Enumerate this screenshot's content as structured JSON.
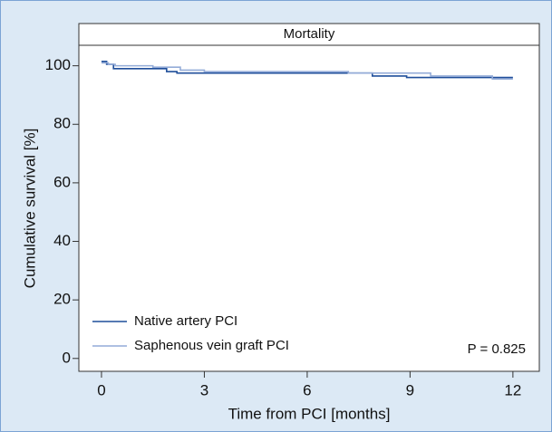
{
  "chart_data": {
    "type": "line",
    "title": "Mortality",
    "x_label": "Time from PCI [months]",
    "y_label": "Cumulative survival [%]",
    "annotation": "P = 0.825",
    "xlim": [
      -0.66,
      12.77
    ],
    "xticks": [
      0,
      3,
      6,
      9,
      12
    ],
    "ylim": [
      -4.4,
      107
    ],
    "yticks": [
      0,
      20,
      40,
      60,
      80,
      100
    ],
    "legend": "lower left",
    "series": [
      {
        "name": "Native artery PCI",
        "color": "#1f4e9a",
        "x": [
          0,
          0.15,
          0.15,
          0.35,
          0.35,
          1.9,
          1.9,
          2.2,
          2.2,
          7.9,
          7.9,
          8.9,
          8.9,
          12
        ],
        "values": [
          101.5,
          101.5,
          100.5,
          100.5,
          99,
          99,
          98,
          98,
          97.5,
          97.5,
          96.5,
          96.5,
          96,
          96
        ]
      },
      {
        "name": "Saphenous vein graft PCI",
        "color": "#94acd8",
        "x": [
          0,
          0.2,
          0.2,
          0.4,
          0.4,
          1.5,
          1.5,
          2.3,
          2.3,
          3,
          3,
          7.2,
          7.2,
          9.6,
          9.6,
          11.4,
          11.4,
          12
        ],
        "values": [
          101,
          101,
          100.5,
          100.5,
          100,
          100,
          99.5,
          99.5,
          98.5,
          98.5,
          98,
          98,
          97.5,
          97.5,
          96.5,
          96.5,
          95.5,
          95.5
        ]
      }
    ]
  }
}
